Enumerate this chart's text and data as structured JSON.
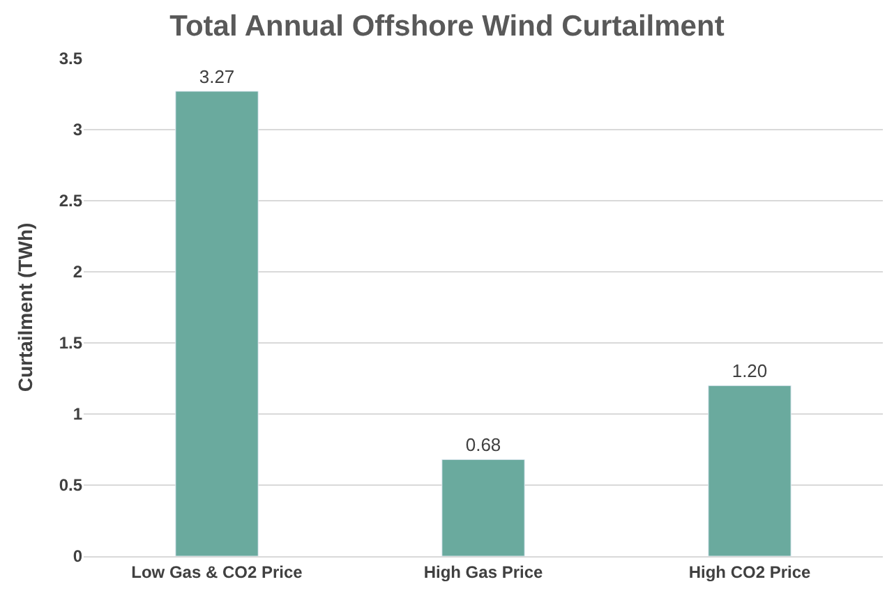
{
  "chart_data": {
    "type": "bar",
    "title": "Total Annual Offshore Wind Curtailment",
    "ylabel": "Curtailment (TWh)",
    "categories": [
      "Low Gas & CO2 Price",
      "High Gas Price",
      "High CO2 Price"
    ],
    "values": [
      3.27,
      0.68,
      1.2
    ],
    "value_labels": [
      "3.27",
      "0.68",
      "1.20"
    ],
    "color": "#6aaa9e",
    "ylim": [
      0,
      3.5
    ],
    "yticks": [
      0,
      0.5,
      1,
      1.5,
      2,
      2.5,
      3,
      3.5
    ],
    "grid": "y",
    "legend": false
  }
}
